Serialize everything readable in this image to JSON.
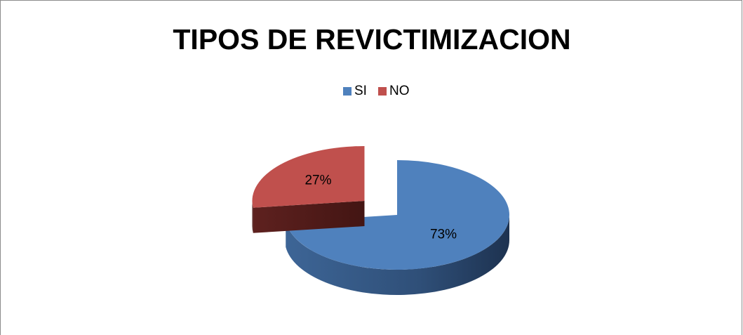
{
  "chart_data": {
    "type": "pie",
    "title": "TIPOS DE REVICTIMIZACION",
    "categories": [
      "SI",
      "NO"
    ],
    "values": [
      73,
      27
    ],
    "value_labels": [
      "73%",
      "27%"
    ],
    "colors": [
      "#4f81bd",
      "#c0504d"
    ],
    "legend": "top"
  }
}
